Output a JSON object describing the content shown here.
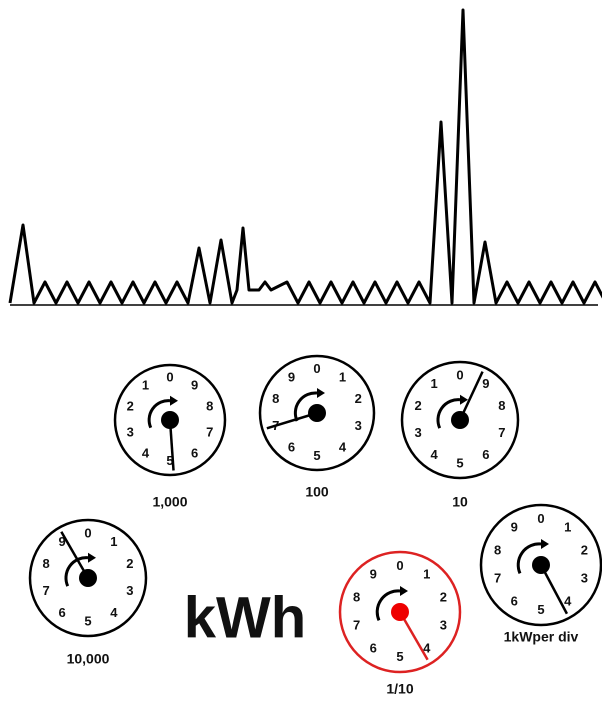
{
  "unit": "kWh",
  "dials": [
    {
      "label": "1,000",
      "digits": [
        "0",
        "9",
        "8",
        "7",
        "6",
        "5",
        "4",
        "3",
        "2",
        "1"
      ]
    },
    {
      "label": "100",
      "digits": [
        "0",
        "1",
        "2",
        "3",
        "4",
        "5",
        "6",
        "7",
        "8",
        "9"
      ]
    },
    {
      "label": "10",
      "digits": [
        "0",
        "9",
        "8",
        "7",
        "6",
        "5",
        "4",
        "3",
        "2",
        "1"
      ]
    },
    {
      "label": "10,000",
      "digits": [
        "0",
        "1",
        "2",
        "3",
        "4",
        "5",
        "6",
        "7",
        "8",
        "9"
      ]
    },
    {
      "label": "1/10",
      "digits": [
        "0",
        "1",
        "2",
        "3",
        "4",
        "5",
        "6",
        "7",
        "8",
        "9"
      ]
    },
    {
      "label": "1kWper div",
      "digits": [
        "0",
        "1",
        "2",
        "3",
        "4",
        "5",
        "6",
        "7",
        "8",
        "9"
      ]
    }
  ]
}
